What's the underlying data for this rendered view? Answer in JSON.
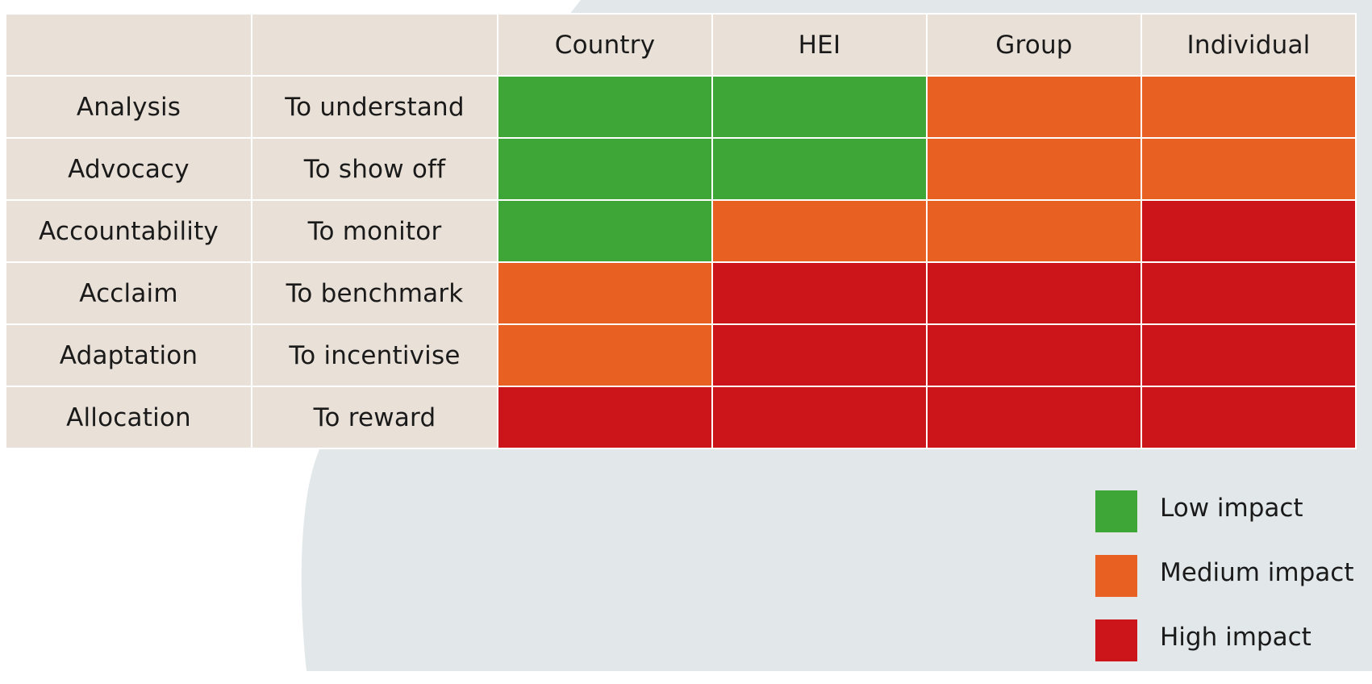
{
  "chart_data": {
    "type": "table",
    "title": "",
    "columns": [
      "",
      "",
      "Country",
      "HEI",
      "Group",
      "Individual"
    ],
    "levels": [
      "Country",
      "HEI",
      "Group",
      "Individual"
    ],
    "rows": [
      {
        "use": "Analysis",
        "purpose": "To understand",
        "impacts": [
          "low",
          "low",
          "medium",
          "medium"
        ]
      },
      {
        "use": "Advocacy",
        "purpose": "To show off",
        "impacts": [
          "low",
          "low",
          "medium",
          "medium"
        ]
      },
      {
        "use": "Accountability",
        "purpose": "To monitor",
        "impacts": [
          "low",
          "medium",
          "medium",
          "high"
        ]
      },
      {
        "use": "Acclaim",
        "purpose": "To benchmark",
        "impacts": [
          "medium",
          "high",
          "high",
          "high"
        ]
      },
      {
        "use": "Adaptation",
        "purpose": "To incentivise",
        "impacts": [
          "medium",
          "high",
          "high",
          "high"
        ]
      },
      {
        "use": "Allocation",
        "purpose": "To reward",
        "impacts": [
          "high",
          "high",
          "high",
          "high"
        ]
      }
    ],
    "legend": [
      {
        "key": "low",
        "label": "Low impact",
        "color": "#3ea537"
      },
      {
        "key": "medium",
        "label": "Medium impact",
        "color": "#e86022"
      },
      {
        "key": "high",
        "label": "High impact",
        "color": "#cc151b"
      }
    ],
    "legend_position": "bottom-right"
  },
  "colors": {
    "label_cell": "#e9e0d7",
    "background_shape": "#e2e8ea"
  }
}
